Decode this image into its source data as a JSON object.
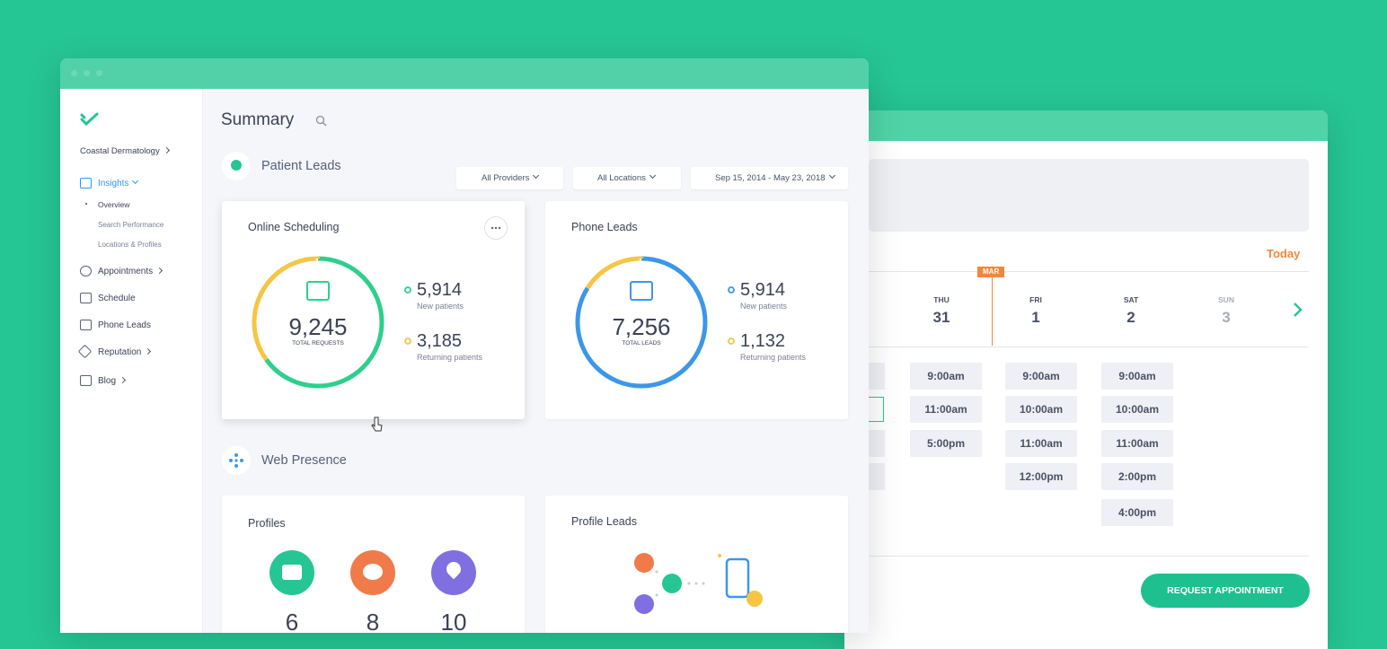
{
  "sidebar": {
    "practice": "Coastal Dermatology",
    "nav": [
      "Insights",
      "Appointments",
      "Schedule",
      "Phone Leads",
      "Reputation",
      "Blog"
    ],
    "subnav": [
      "Overview",
      "Search Performance",
      "Locations & Profiles"
    ]
  },
  "header": {
    "title": "Summary",
    "filters": [
      "All Providers",
      "All Locations",
      "Sep 15, 2014 - May 23, 2018"
    ]
  },
  "sections": [
    {
      "title": "Patient Leads",
      "cards": [
        {
          "title": "Online Scheduling",
          "total": {
            "value": 9245,
            "label": "9,245"
          },
          "total_caption": "TOTAL REQUESTS",
          "metrics": [
            {
              "value": 5914,
              "label": "5,914",
              "caption": "New patients",
              "color": "#2ecf8c"
            },
            {
              "value": 3185,
              "label": "3,185",
              "caption": "Returning patients",
              "color": "#f6c544"
            }
          ]
        },
        {
          "title": "Phone Leads",
          "total": {
            "value": 7256,
            "label": "7,256"
          },
          "total_caption": "TOTAL LEADS",
          "metrics": [
            {
              "value": 5914,
              "label": "5,914",
              "caption": "New patients",
              "color": "#3d97e8"
            },
            {
              "value": 1132,
              "label": "1,132",
              "caption": "Returning patients",
              "color": "#f6c544"
            }
          ]
        }
      ]
    },
    {
      "title": "Web Presence",
      "cards": [
        {
          "title": "Profiles",
          "counts": [
            "6",
            "8",
            "10"
          ]
        },
        {
          "title": "Profile Leads"
        }
      ]
    }
  ],
  "calendar": {
    "today": "Today",
    "month": "MAR",
    "days": [
      {
        "name": "THU",
        "date": "31",
        "slots": [
          "9:00am",
          "11:00am",
          "5:00pm"
        ]
      },
      {
        "name": "FRI",
        "date": "1",
        "slots": [
          "9:00am",
          "10:00am",
          "11:00am",
          "12:00pm"
        ]
      },
      {
        "name": "SAT",
        "date": "2",
        "slots": [
          "9:00am",
          "10:00am",
          "11:00am",
          "2:00pm",
          "4:00pm"
        ]
      },
      {
        "name": "SUN",
        "date": "3",
        "slots": []
      }
    ],
    "button": "REQUEST APPOINTMENT"
  }
}
